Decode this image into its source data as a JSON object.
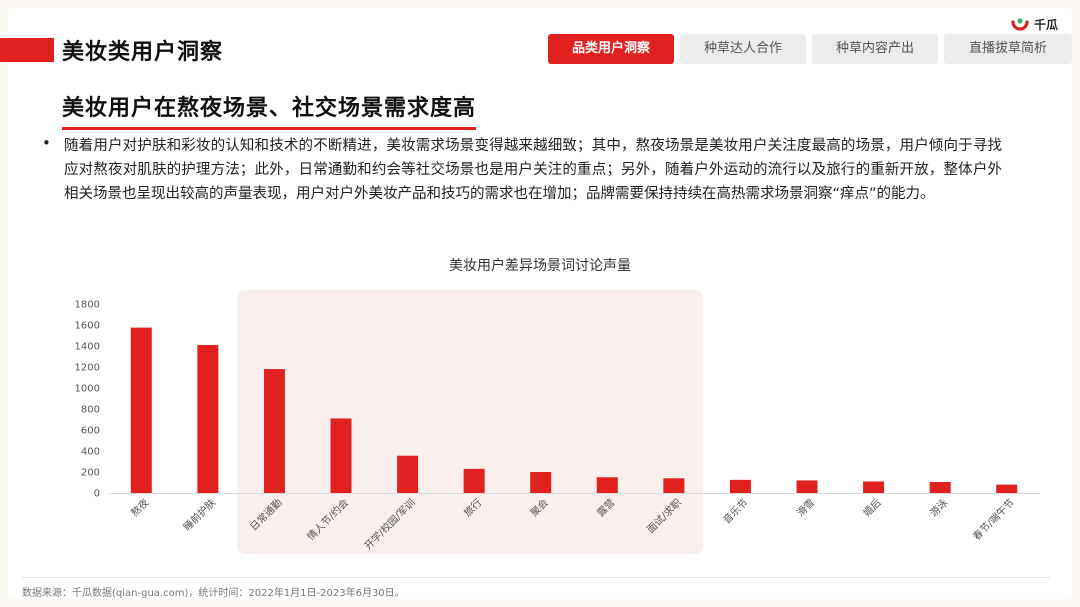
{
  "header": {
    "page_title": "美妆类用户洞察",
    "tabs": [
      {
        "label": "品类用户洞察",
        "active": true
      },
      {
        "label": "种草达人合作",
        "active": false
      },
      {
        "label": "种草内容产出",
        "active": false
      },
      {
        "label": "直播拔草简析",
        "active": false
      }
    ],
    "logo_text": "千瓜",
    "accent_color": "#e0211f"
  },
  "section": {
    "subtitle": "美妆用户在熬夜场景、社交场景需求度高",
    "bullet": "•",
    "paragraph": "随着用户对护肤和彩妆的认知和技术的不断精进，美妆需求场景变得越来越细致；其中，熬夜场景是美妆用户关注度最高的场景，用户倾向于寻找应对熬夜对肌肤的护理方法；此外，日常通勤和约会等社交场景也是用户关注的重点；另外，随着户外运动的流行以及旅行的重新开放，整体户外相关场景也呈现出较高的声量表现，用户对户外美妆产品和技巧的需求也在增加；品牌需要保持持续在高热需求场景洞察“痒点”的能力。"
  },
  "chart_data": {
    "type": "bar",
    "title": "美妆用户差异场景词讨论声量",
    "categories": [
      "熬夜",
      "睡前护肤",
      "日常通勤",
      "情人节/约会",
      "开学/校园/军训",
      "旅行",
      "聚会",
      "露营",
      "面试/求职",
      "音乐节",
      "滑雪",
      "婚后",
      "游泳",
      "春节/端午节"
    ],
    "values": [
      1575,
      1410,
      1180,
      710,
      355,
      230,
      200,
      150,
      140,
      125,
      120,
      110,
      105,
      80
    ],
    "ylim": [
      0,
      1800
    ],
    "yticks": [
      0,
      200,
      400,
      600,
      800,
      1000,
      1200,
      1400,
      1600,
      1800
    ],
    "xlabel": "",
    "ylabel": "",
    "bar_color": "#e0211f",
    "highlight_color": "#f9efed",
    "grid": false
  },
  "footer": {
    "source": "数据来源：千瓜数据(qian-gua.com)，统计时间：2022年1月1日-2023年6月30日。"
  }
}
